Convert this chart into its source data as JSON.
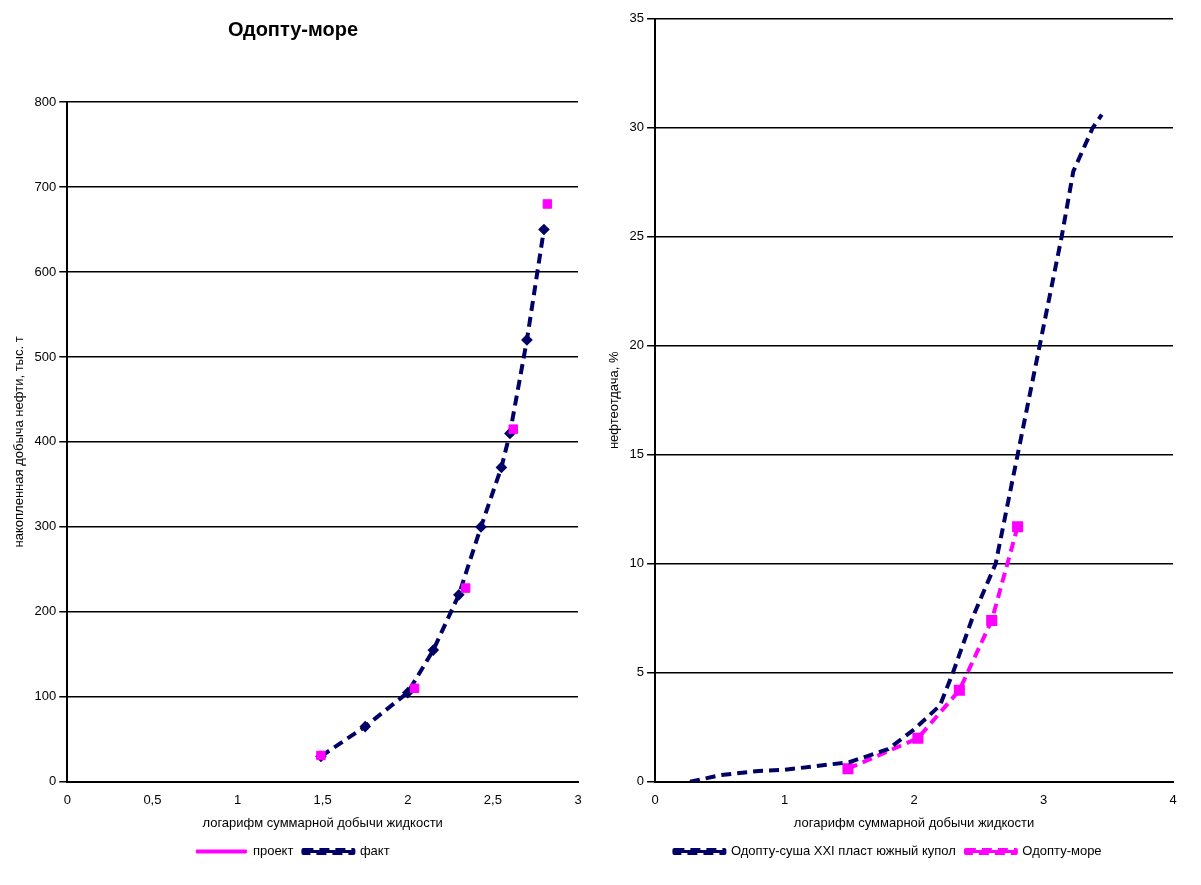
{
  "chart_data": [
    {
      "type": "line",
      "title": "Одопту-море",
      "xlabel": "логарифм суммарной добычи жидкости",
      "ylabel": "накопленная добыча нефти, тыс. т",
      "xlim": [
        0,
        3
      ],
      "xticks": [
        0,
        {
          "value": 0.5,
          "label": "0,5"
        },
        1,
        {
          "value": 1.5,
          "label": "1,5"
        },
        2,
        {
          "value": 2.5,
          "label": "2,5"
        },
        3
      ],
      "ylim": [
        0,
        800
      ],
      "yticks": [
        0,
        100,
        200,
        300,
        400,
        500,
        600,
        700,
        800
      ],
      "grid": "y",
      "legend": "bottom",
      "series": [
        {
          "name": "факт",
          "type": "line",
          "color": "#000066",
          "line_style": "dashed",
          "marker": "diamond",
          "x": [
            1.49,
            1.75,
            2.0,
            2.15,
            2.3,
            2.43,
            2.55,
            2.6,
            2.7,
            2.8
          ],
          "values": [
            30,
            65,
            105,
            155,
            220,
            300,
            370,
            410,
            520,
            650
          ]
        },
        {
          "name": "проект",
          "type": "scatter",
          "color": "#ff00ff",
          "marker": "square",
          "x": [
            1.49,
            2.04,
            2.34,
            2.62,
            2.82
          ],
          "values": [
            31,
            110,
            228,
            415,
            680
          ]
        }
      ]
    },
    {
      "type": "line",
      "xlabel": "логарифм суммарной добычи жидкости",
      "ylabel": "нефтеотдача, %",
      "xlim": [
        0,
        4
      ],
      "xticks": [
        0,
        1,
        2,
        3,
        4
      ],
      "ylim": [
        0,
        35
      ],
      "yticks": [
        0,
        5,
        10,
        15,
        20,
        25,
        30,
        35
      ],
      "grid": "y",
      "legend": "bottom",
      "series": [
        {
          "name": "Одопту-суша XXI пласт южный купол",
          "type": "line",
          "color": "#000066",
          "line_style": "dashed",
          "marker": "none",
          "x": [
            0.27,
            0.5,
            0.8,
            1.0,
            1.5,
            1.8,
            2.0,
            2.2,
            2.3,
            2.45,
            2.63,
            2.8,
            2.97,
            3.14,
            3.23,
            3.38,
            3.45
          ],
          "values": [
            0,
            0.3,
            0.5,
            0.55,
            0.9,
            1.5,
            2.4,
            3.5,
            5,
            7.5,
            10,
            15,
            20,
            25,
            28,
            30,
            30.6
          ]
        },
        {
          "name": "Одопту-море",
          "type": "line",
          "color": "#ff00ff",
          "line_style": "dashed",
          "marker": "square",
          "x": [
            1.49,
            2.03,
            2.35,
            2.6,
            2.8
          ],
          "values": [
            0.6,
            2.0,
            4.2,
            7.4,
            11.7
          ]
        }
      ]
    }
  ]
}
